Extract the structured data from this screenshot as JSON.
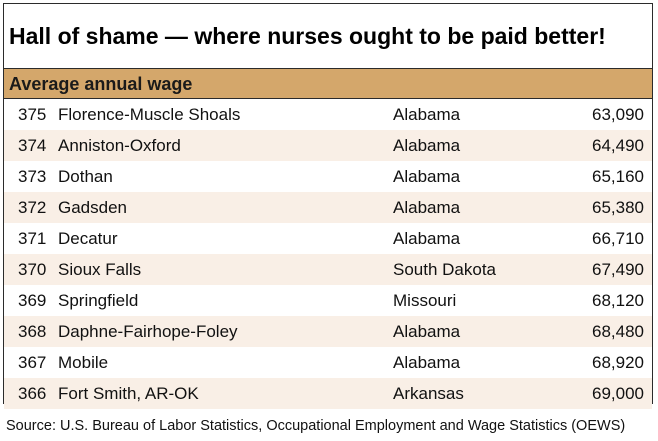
{
  "chart_data": {
    "type": "table",
    "title": "Hall of shame — where nurses ought to be paid better!",
    "subtitle": "Average annual wage",
    "rows": [
      {
        "rank": "375",
        "metro": "Florence-Muscle Shoals",
        "state": "Alabama",
        "wage": "63,090"
      },
      {
        "rank": "374",
        "metro": "Anniston-Oxford",
        "state": "Alabama",
        "wage": "64,490"
      },
      {
        "rank": "373",
        "metro": "Dothan",
        "state": "Alabama",
        "wage": "65,160"
      },
      {
        "rank": "372",
        "metro": "Gadsden",
        "state": "Alabama",
        "wage": "65,380"
      },
      {
        "rank": "371",
        "metro": "Decatur",
        "state": "Alabama",
        "wage": "66,710"
      },
      {
        "rank": "370",
        "metro": "Sioux Falls",
        "state": "South Dakota",
        "wage": "67,490"
      },
      {
        "rank": "369",
        "metro": "Springfield",
        "state": "Missouri",
        "wage": "68,120"
      },
      {
        "rank": "368",
        "metro": "Daphne-Fairhope-Foley",
        "state": "Alabama",
        "wage": "68,480"
      },
      {
        "rank": "367",
        "metro": "Mobile",
        "state": "Alabama",
        "wage": "68,920"
      },
      {
        "rank": "366",
        "metro": "Fort Smith, AR-OK",
        "state": "Arkansas",
        "wage": "69,000"
      }
    ],
    "source": "Source: U.S. Bureau of Labor Statistics, Occupational Employment and Wage Statistics (OEWS)"
  },
  "colors": {
    "header_band": "#d4a76b",
    "alt_row": "#f9efe6",
    "border": "#2b2b2b"
  }
}
